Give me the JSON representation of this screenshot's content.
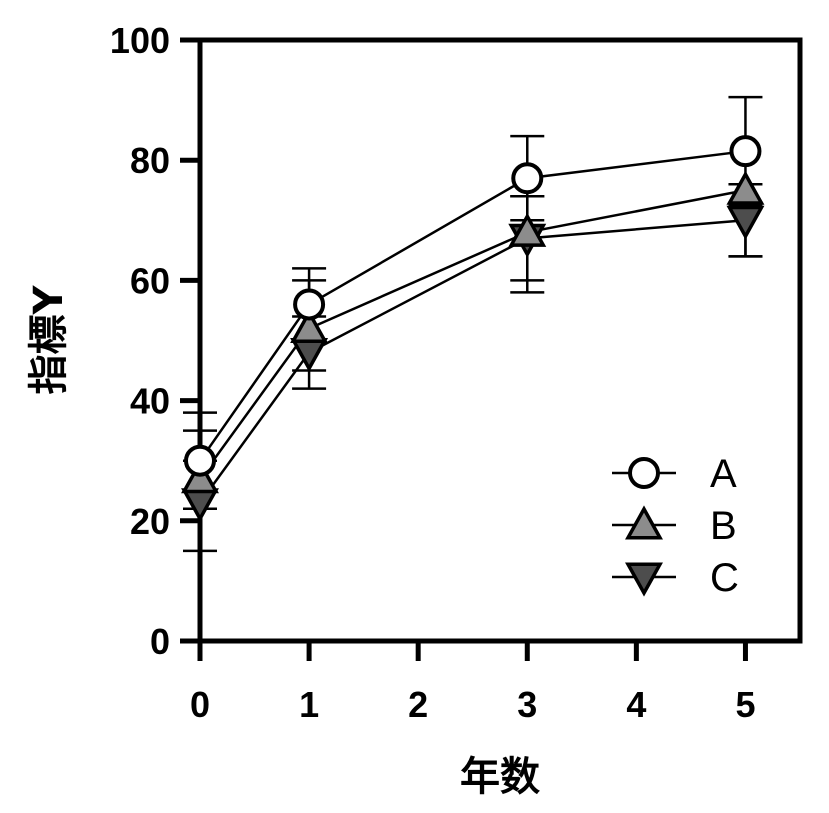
{
  "chart_data": {
    "type": "line",
    "title": "",
    "xlabel": "年数",
    "ylabel": "指標Y",
    "xlim": [
      0,
      5.5
    ],
    "ylim": [
      0,
      100
    ],
    "x_ticks": [
      0,
      1,
      2,
      3,
      4,
      5
    ],
    "y_ticks": [
      0,
      20,
      40,
      60,
      80,
      100
    ],
    "x_tick_labels": [
      "0",
      "1",
      "2",
      "3",
      "4",
      "5"
    ],
    "y_tick_labels": [
      "0",
      "20",
      "40",
      "60",
      "80",
      "100"
    ],
    "grid": false,
    "legend_position": "bottom-right",
    "x": [
      0,
      1,
      3,
      5
    ],
    "series": [
      {
        "name": "A",
        "marker": "circle",
        "fill": "#ffffff",
        "values": [
          30,
          56,
          77,
          81.5
        ],
        "err_low": [
          22,
          50,
          70,
          72.5
        ],
        "err_high": [
          38,
          62,
          84,
          90.5
        ]
      },
      {
        "name": "B",
        "marker": "triangle-up",
        "fill": "#8c8c8c",
        "values": [
          27,
          52,
          68,
          75
        ],
        "err_low": [
          22,
          45,
          60,
          64
        ],
        "err_high": [
          35,
          60,
          74,
          76
        ]
      },
      {
        "name": "C",
        "marker": "triangle-down",
        "fill": "#4d4d4d",
        "values": [
          23,
          48,
          67,
          70
        ],
        "err_low": [
          15,
          42,
          58,
          64
        ],
        "err_high": [
          30,
          54,
          74,
          73
        ]
      }
    ]
  }
}
